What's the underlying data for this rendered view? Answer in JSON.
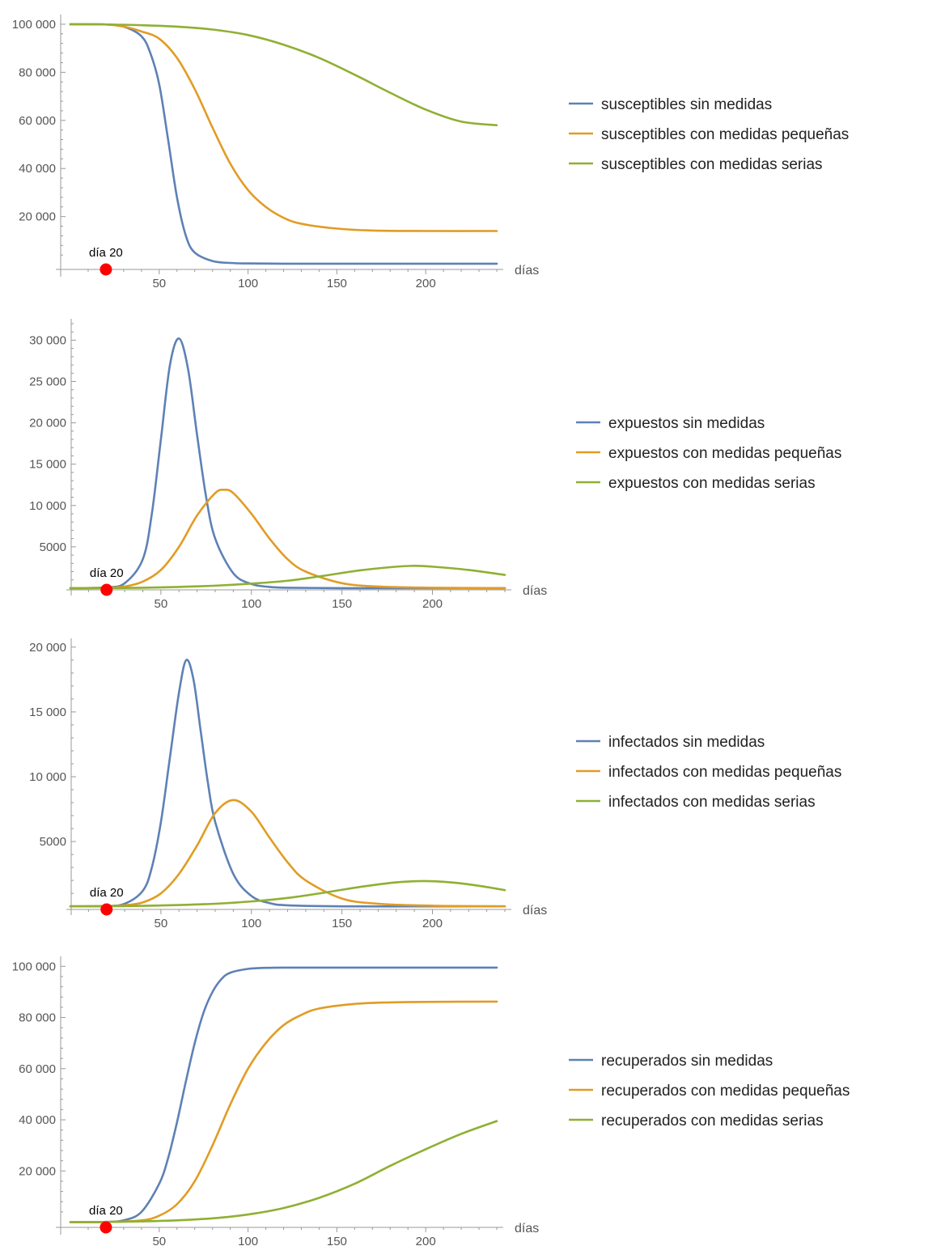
{
  "colors": {
    "sin_medidas": "#5e81b5",
    "medidas_pequenas": "#e19c24",
    "medidas_serias": "#8fb032",
    "marker": "#ff0000"
  },
  "chart_data": [
    {
      "type": "line",
      "xlabel": "días",
      "ylabel": "",
      "xlim": [
        0,
        240
      ],
      "ylim": [
        -3000,
        102000
      ],
      "xticks": [
        50,
        100,
        150,
        200
      ],
      "xtick_labels": [
        "50",
        "100",
        "150",
        "200"
      ],
      "yticks": [
        20000,
        40000,
        60000,
        80000,
        100000
      ],
      "ytick_labels": [
        "20 000",
        "40 000",
        "60 000",
        "80 000",
        "100 000"
      ],
      "grid": false,
      "legend_placement": "right",
      "marker": {
        "x": 20,
        "y": 0,
        "label": "día 20"
      },
      "series": [
        {
          "name": "susceptibles sin medidas",
          "color_key": "sin_medidas",
          "x": [
            0,
            20,
            30,
            40,
            45,
            50,
            55,
            60,
            65,
            70,
            80,
            90,
            100,
            120,
            150,
            200,
            240
          ],
          "y": [
            100000,
            99900,
            99000,
            95000,
            88000,
            75000,
            52000,
            28000,
            12000,
            5000,
            1500,
            700,
            500,
            400,
            400,
            400,
            400
          ]
        },
        {
          "name": "susceptibles con medidas pequeñas",
          "color_key": "medidas_pequenas",
          "x": [
            0,
            20,
            30,
            40,
            50,
            60,
            70,
            80,
            90,
            100,
            110,
            120,
            130,
            150,
            170,
            200,
            240
          ],
          "y": [
            100000,
            99900,
            99000,
            97000,
            94000,
            86000,
            73000,
            57000,
            42000,
            31000,
            24000,
            19500,
            17000,
            15000,
            14200,
            14000,
            14000
          ]
        },
        {
          "name": "susceptibles con medidas serias",
          "color_key": "medidas_serias",
          "x": [
            0,
            20,
            40,
            60,
            80,
            100,
            120,
            140,
            160,
            180,
            200,
            220,
            240
          ],
          "y": [
            100000,
            99900,
            99600,
            99000,
            97800,
            95500,
            91500,
            86000,
            79000,
            71500,
            64500,
            59500,
            58000
          ]
        }
      ]
    },
    {
      "type": "line",
      "xlabel": "días",
      "ylabel": "",
      "xlim": [
        0,
        240
      ],
      "ylim": [
        -300,
        32000
      ],
      "xticks": [
        50,
        100,
        150,
        200
      ],
      "xtick_labels": [
        "50",
        "100",
        "150",
        "200"
      ],
      "yticks": [
        5000,
        10000,
        15000,
        20000,
        25000,
        30000
      ],
      "ytick_labels": [
        "5000",
        "10 000",
        "15 000",
        "20 000",
        "25 000",
        "30 000"
      ],
      "grid": false,
      "legend_placement": "right",
      "marker": {
        "x": 20,
        "y": 0,
        "label": "día 20"
      },
      "series": [
        {
          "name": "expuestos sin medidas",
          "color_key": "sin_medidas",
          "x": [
            0,
            20,
            30,
            40,
            45,
            50,
            55,
            60,
            65,
            70,
            75,
            80,
            90,
            100,
            110,
            120,
            150,
            200,
            240
          ],
          "y": [
            0,
            100,
            600,
            3500,
            9000,
            18000,
            27000,
            30200,
            26500,
            18500,
            11000,
            6000,
            1800,
            500,
            150,
            50,
            0,
            0,
            0
          ]
        },
        {
          "name": "expuestos con medidas pequeñas",
          "color_key": "medidas_pequenas",
          "x": [
            0,
            20,
            30,
            40,
            50,
            60,
            70,
            80,
            85,
            90,
            100,
            110,
            120,
            130,
            150,
            170,
            200,
            240
          ],
          "y": [
            0,
            50,
            200,
            800,
            2200,
            5000,
            8800,
            11500,
            11900,
            11500,
            9000,
            6000,
            3500,
            2000,
            600,
            200,
            50,
            0
          ]
        },
        {
          "name": "expuestos con medidas serias",
          "color_key": "medidas_serias",
          "x": [
            0,
            20,
            40,
            60,
            80,
            100,
            120,
            140,
            160,
            180,
            190,
            200,
            220,
            240
          ],
          "y": [
            0,
            10,
            50,
            150,
            300,
            550,
            900,
            1500,
            2150,
            2600,
            2700,
            2600,
            2200,
            1600
          ]
        }
      ]
    },
    {
      "type": "line",
      "xlabel": "días",
      "ylabel": "",
      "xlim": [
        0,
        240
      ],
      "ylim": [
        -300,
        20300
      ],
      "xticks": [
        50,
        100,
        150,
        200
      ],
      "xtick_labels": [
        "50",
        "100",
        "150",
        "200"
      ],
      "yticks": [
        5000,
        10000,
        15000,
        20000
      ],
      "ytick_labels": [
        "5000",
        "10 000",
        "15 000",
        "20 000"
      ],
      "grid": false,
      "legend_placement": "right",
      "marker": {
        "x": 20,
        "y": 0,
        "label": "día 20"
      },
      "series": [
        {
          "name": "infectados sin medidas",
          "color_key": "sin_medidas",
          "x": [
            0,
            20,
            30,
            40,
            45,
            50,
            55,
            60,
            64,
            68,
            72,
            76,
            80,
            90,
            100,
            110,
            120,
            150,
            200,
            240
          ],
          "y": [
            0,
            30,
            200,
            1200,
            3000,
            6500,
            11500,
            16500,
            19000,
            17500,
            13500,
            9500,
            6500,
            2500,
            800,
            250,
            80,
            0,
            0,
            0
          ]
        },
        {
          "name": "infectados con medidas pequeñas",
          "color_key": "medidas_pequenas",
          "x": [
            0,
            20,
            30,
            40,
            50,
            60,
            70,
            80,
            90,
            100,
            110,
            120,
            130,
            150,
            170,
            200,
            240
          ],
          "y": [
            0,
            20,
            80,
            300,
            1000,
            2500,
            4700,
            7200,
            8200,
            7300,
            5300,
            3400,
            2000,
            600,
            200,
            50,
            0
          ]
        },
        {
          "name": "infectados con medidas serias",
          "color_key": "medidas_serias",
          "x": [
            0,
            20,
            40,
            60,
            80,
            100,
            120,
            140,
            160,
            180,
            195,
            210,
            225,
            240
          ],
          "y": [
            0,
            5,
            40,
            100,
            200,
            380,
            650,
            1050,
            1500,
            1850,
            1950,
            1850,
            1600,
            1250
          ]
        }
      ]
    },
    {
      "type": "line",
      "xlabel": "días",
      "ylabel": "",
      "xlim": [
        0,
        240
      ],
      "ylim": [
        -3000,
        102000
      ],
      "xticks": [
        50,
        100,
        150,
        200
      ],
      "xtick_labels": [
        "50",
        "100",
        "150",
        "200"
      ],
      "yticks": [
        20000,
        40000,
        60000,
        80000,
        100000
      ],
      "ytick_labels": [
        "20 000",
        "40 000",
        "60 000",
        "80 000",
        "100 000"
      ],
      "grid": false,
      "legend_placement": "right",
      "marker": {
        "x": 20,
        "y": 0,
        "label": "día 20"
      },
      "series": [
        {
          "name": "recuperados sin medidas",
          "color_key": "sin_medidas",
          "x": [
            0,
            20,
            30,
            40,
            50,
            55,
            60,
            65,
            70,
            75,
            80,
            85,
            90,
            100,
            110,
            120,
            150,
            200,
            240
          ],
          "y": [
            0,
            100,
            700,
            4000,
            15000,
            25000,
            39000,
            55000,
            70000,
            82000,
            90000,
            95000,
            97500,
            99000,
            99400,
            99500,
            99500,
            99500,
            99500
          ]
        },
        {
          "name": "recuperados con medidas pequeñas",
          "color_key": "medidas_pequenas",
          "x": [
            0,
            20,
            40,
            50,
            60,
            70,
            80,
            90,
            100,
            110,
            120,
            130,
            140,
            160,
            180,
            200,
            240
          ],
          "y": [
            0,
            50,
            700,
            2500,
            7000,
            16000,
            30000,
            46000,
            60000,
            70000,
            77000,
            81000,
            83500,
            85300,
            85900,
            86100,
            86200
          ]
        },
        {
          "name": "recuperados con medidas serias",
          "color_key": "medidas_serias",
          "x": [
            0,
            20,
            40,
            60,
            80,
            100,
            120,
            140,
            160,
            180,
            200,
            220,
            240
          ],
          "y": [
            0,
            50,
            300,
            700,
            1500,
            3000,
            5500,
            9500,
            15000,
            22000,
            28500,
            34500,
            39500
          ]
        }
      ]
    }
  ]
}
